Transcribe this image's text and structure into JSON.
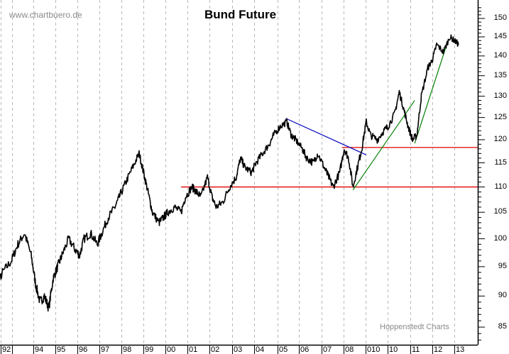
{
  "chart_data": {
    "type": "line",
    "title": "Bund Future",
    "watermark": "www.chartbuero.de",
    "credit": "Hoppenstedt Charts",
    "xlabel": "",
    "ylabel": "",
    "y_scale": "log",
    "ylim": [
      82,
      155
    ],
    "y_ticks": [
      85,
      90,
      95,
      100,
      105,
      110,
      115,
      120,
      125,
      130,
      135,
      140,
      145,
      150
    ],
    "x_tick_labels": [
      "92",
      "",
      "94",
      "95",
      "96",
      "97",
      "98",
      "99",
      "00",
      "01",
      "02",
      "03",
      "04",
      "05",
      "06",
      "07",
      "08",
      "010",
      "10",
      "11",
      "12",
      "13"
    ],
    "grid": "vertical dashed at each year",
    "series": [
      {
        "name": "Bund Future",
        "color": "#000000",
        "x": [
          1992.0,
          1992.3,
          1992.6,
          1993.0,
          1993.3,
          1993.6,
          1993.9,
          1994.1,
          1994.3,
          1994.5,
          1994.7,
          1994.9,
          1995.1,
          1995.3,
          1995.6,
          1995.9,
          1996.1,
          1996.3,
          1996.6,
          1996.9,
          1997.1,
          1997.4,
          1997.7,
          1997.9,
          1998.2,
          1998.5,
          1998.8,
          1999.0,
          1999.2,
          1999.4,
          1999.7,
          1999.9,
          2000.1,
          2000.4,
          2000.7,
          2000.9,
          2001.2,
          2001.4,
          2001.6,
          2001.9,
          2002.1,
          2002.3,
          2002.6,
          2002.9,
          2003.2,
          2003.4,
          2003.6,
          2003.9,
          2004.1,
          2004.4,
          2004.7,
          2004.9,
          2005.2,
          2005.5,
          2005.7,
          2005.9,
          2006.2,
          2006.4,
          2006.7,
          2006.9,
          2007.2,
          2007.4,
          2007.6,
          2007.9,
          2008.1,
          2008.3,
          2008.5,
          2008.7,
          2008.9,
          2009.1,
          2009.3,
          2009.6,
          2009.9,
          2010.1,
          2010.4,
          2010.6,
          2010.8,
          2011.0,
          2011.2,
          2011.4,
          2011.6,
          2011.9,
          2012.1,
          2012.3,
          2012.6,
          2012.9,
          2013.1,
          2013.3
        ],
        "values": [
          88,
          91,
          94,
          96,
          99,
          101,
          97,
          92,
          89,
          90,
          88,
          93,
          95,
          97,
          100,
          98,
          97,
          100,
          101,
          99,
          101,
          104,
          106,
          108,
          111,
          114,
          117,
          113,
          109,
          105,
          103,
          104,
          105,
          106,
          105,
          108,
          110,
          109,
          108,
          112,
          108,
          106,
          107,
          110,
          112,
          116,
          114,
          113,
          115,
          117,
          119,
          121,
          123,
          124,
          121,
          120,
          118,
          116,
          115,
          117,
          114,
          112,
          110,
          113,
          118,
          116,
          110,
          114,
          118,
          124,
          121,
          120,
          122,
          123,
          126,
          131,
          127,
          123,
          120,
          121,
          130,
          137,
          139,
          143,
          141,
          145,
          144,
          143
        ]
      }
    ],
    "annotations": [
      {
        "type": "hline",
        "color": "#e00000",
        "y": 110,
        "x_from": 2000.7,
        "x_to": 2013.7
      },
      {
        "type": "hline",
        "color": "#e00000",
        "y": 118.3,
        "x_from": 2008.0,
        "x_to": 2013.7
      },
      {
        "type": "line",
        "color": "#0000c0",
        "from": [
          2005.45,
          124.8
        ],
        "to": [
          2009.1,
          116.7
        ]
      },
      {
        "type": "line",
        "color": "#008000",
        "from": [
          2008.5,
          109.4
        ],
        "to": [
          2011.3,
          129.0
        ]
      },
      {
        "type": "line",
        "color": "#008000",
        "from": [
          2011.3,
          119.2
        ],
        "to": [
          2012.8,
          143.8
        ]
      }
    ]
  },
  "labels": {
    "watermark": "www.chartbuero.de",
    "title": "Bund Future",
    "credit": "Hoppenstedt Charts"
  }
}
